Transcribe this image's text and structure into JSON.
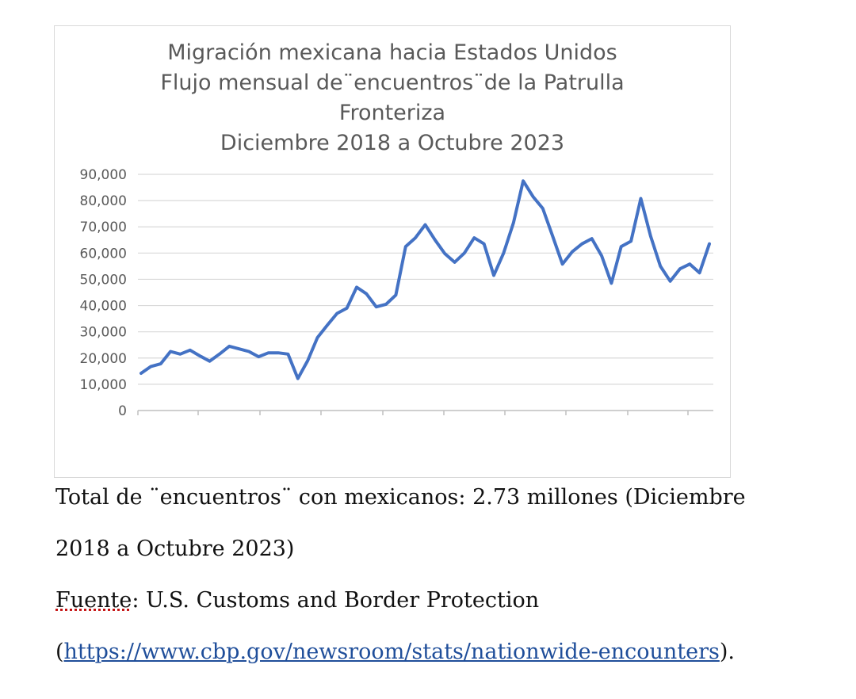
{
  "chart_data": {
    "type": "line",
    "title_lines": [
      "Migración mexicana hacia Estados Unidos",
      "Flujo mensual de¨encuentros¨de la Patrulla",
      "Fronteriza",
      "Diciembre 2018 a Octubre 2023"
    ],
    "xlabel": "",
    "ylabel": "",
    "ylim": [
      0,
      90000
    ],
    "yticks": [
      "0",
      "10,000",
      "20,000",
      "30,000",
      "40,000",
      "50,000",
      "60,000",
      "70,000",
      "80,000",
      "90,000"
    ],
    "grid": true,
    "legend": "none",
    "x": [
      "2018-12",
      "2019-01",
      "2019-02",
      "2019-03",
      "2019-04",
      "2019-05",
      "2019-06",
      "2019-07",
      "2019-08",
      "2019-09",
      "2019-10",
      "2019-11",
      "2019-12",
      "2020-01",
      "2020-02",
      "2020-03",
      "2020-04",
      "2020-05",
      "2020-06",
      "2020-07",
      "2020-08",
      "2020-09",
      "2020-10",
      "2020-11",
      "2020-12",
      "2021-01",
      "2021-02",
      "2021-03",
      "2021-04",
      "2021-05",
      "2021-06",
      "2021-07",
      "2021-08",
      "2021-09",
      "2021-10",
      "2021-11",
      "2021-12",
      "2022-01",
      "2022-02",
      "2022-03",
      "2022-04",
      "2022-05",
      "2022-06",
      "2022-07",
      "2022-08",
      "2022-09",
      "2022-10",
      "2022-11",
      "2022-12",
      "2023-01",
      "2023-02",
      "2023-03",
      "2023-04",
      "2023-05",
      "2023-06",
      "2023-07",
      "2023-08",
      "2023-09",
      "2023-10"
    ],
    "series": [
      {
        "values": [
          14200,
          16800,
          17800,
          22500,
          21500,
          23000,
          20800,
          18800,
          21500,
          24500,
          23500,
          22500,
          20500,
          22000,
          22000,
          21500,
          12200,
          19000,
          27800,
          32500,
          37000,
          39000,
          47000,
          44500,
          39500,
          40500,
          44000,
          62500,
          65800,
          70800,
          65000,
          59800,
          56500,
          60000,
          65800,
          63500,
          51500,
          60000,
          71500,
          87500,
          81500,
          77000,
          66500,
          55800,
          60500,
          63500,
          65500,
          59000,
          48500,
          62500,
          64500,
          80800,
          66500,
          55000,
          49300,
          54000,
          55800,
          52500,
          63500
        ]
      }
    ],
    "line_color": "#4472c4"
  },
  "caption": {
    "total_line1": "Total de ¨encuentros¨ con mexicanos: 2.73 millones (Diciembre",
    "total_line2": "2018 a Octubre 2023)",
    "source_label": "Fuente",
    "source_text": ": U.S. Customs and Border Protection",
    "paren_open": "(",
    "url": "https://www.cbp.gov/newsroom/stats/nationwide-encounters",
    "paren_close": ")."
  }
}
